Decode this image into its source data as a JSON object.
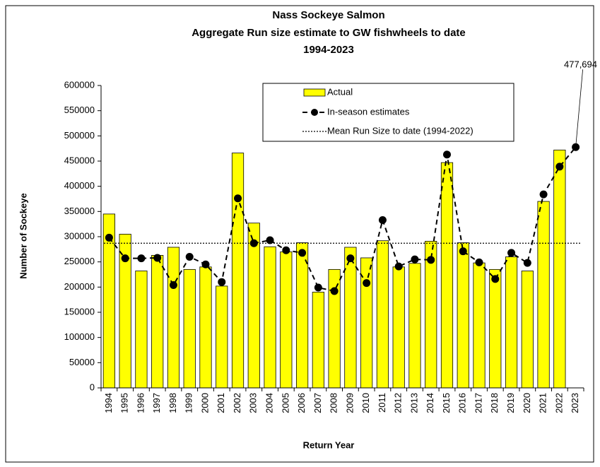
{
  "chart_data": {
    "type": "bar",
    "title": "Nass Sockeye Salmon",
    "subtitle": "Aggregate Run size estimate to GW fishwheels to date",
    "subtitle2": "1994-2023",
    "x_label": "Return Year",
    "y_label": "Number of Sockeye",
    "categories": [
      "1994",
      "1995",
      "1996",
      "1997",
      "1998",
      "1999",
      "2000",
      "2001",
      "2002",
      "2003",
      "2004",
      "2005",
      "2006",
      "2007",
      "2008",
      "2009",
      "2010",
      "2011",
      "2012",
      "2013",
      "2014",
      "2015",
      "2016",
      "2017",
      "2018",
      "2019",
      "2020",
      "2021",
      "2022",
      "2023"
    ],
    "series": [
      {
        "name": "Actual",
        "type": "bar",
        "color": "#ffff00",
        "values": [
          345000,
          305000,
          232000,
          263000,
          279000,
          235000,
          240000,
          202000,
          466000,
          327000,
          280000,
          270000,
          288000,
          190000,
          235000,
          279000,
          258000,
          292000,
          240000,
          247000,
          291000,
          447000,
          288000,
          248000,
          235000,
          260000,
          232000,
          370000,
          472000,
          null
        ]
      },
      {
        "name": "In-season estimates",
        "type": "line",
        "color": "#000000",
        "values": [
          298000,
          257000,
          257000,
          258000,
          204000,
          260000,
          245000,
          210000,
          376000,
          287000,
          293000,
          273000,
          268000,
          199000,
          192000,
          257000,
          208000,
          333000,
          241000,
          255000,
          254000,
          463000,
          271000,
          249000,
          216000,
          268000,
          248000,
          384000,
          439000,
          477694
        ],
        "value_labels": [
          null,
          null,
          null,
          null,
          null,
          null,
          null,
          null,
          null,
          null,
          null,
          null,
          null,
          null,
          null,
          null,
          null,
          null,
          null,
          null,
          null,
          null,
          null,
          null,
          null,
          null,
          null,
          null,
          null,
          "477,694"
        ]
      }
    ],
    "reference_line": {
      "name": "Mean Run Size to date (1994-2022)",
      "value": 287000,
      "color": "#000000"
    },
    "ylim": [
      0,
      600000
    ],
    "yticks": [
      0,
      50000,
      100000,
      150000,
      200000,
      250000,
      300000,
      350000,
      400000,
      450000,
      500000,
      550000,
      600000
    ],
    "grid": false,
    "legend": "top-center"
  }
}
